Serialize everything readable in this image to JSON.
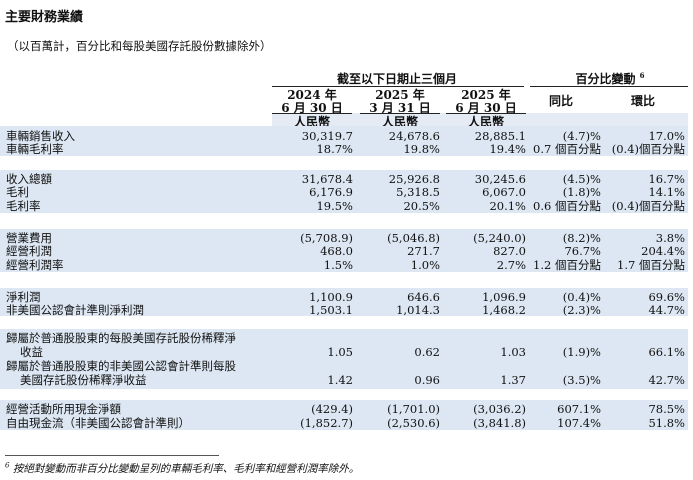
{
  "title": "主要財務業績",
  "subtitle": "（以百萬計，百分比和每股美國存託股份數據除外）",
  "header": {
    "period_group": "截至以下日期止三個月",
    "change_group": "百分比變動",
    "change_note": "6",
    "cols": [
      {
        "line1": "2024 年",
        "line2": "6 月 30 日",
        "currency": "人民幣"
      },
      {
        "line1": "2025 年",
        "line2": "3 月 31 日",
        "currency": "人民幣"
      },
      {
        "line1": "2025 年",
        "line2": "6 月 30 日",
        "currency": "人民幣"
      }
    ],
    "yoy": "同比",
    "qoq": "環比"
  },
  "rows": [
    {
      "label": "車輛銷售收入",
      "v1": "30,319.7",
      "v2": "24,678.6",
      "v3": "28,885.1",
      "yoy": "(4.7)%",
      "qoq": "17.0%"
    },
    {
      "label": "車輛毛利率",
      "v1": "18.7%",
      "v2": "19.8%",
      "v3": "19.4%",
      "yoy": "0.7 個百分點",
      "qoq": "(0.4)個百分點"
    },
    {
      "label": "收入總額",
      "v1": "31,678.4",
      "v2": "25,926.8",
      "v3": "30,245.6",
      "yoy": "(4.5)%",
      "qoq": "16.7%"
    },
    {
      "label": "毛利",
      "v1": "6,176.9",
      "v2": "5,318.5",
      "v3": "6,067.0",
      "yoy": "(1.8)%",
      "qoq": "14.1%"
    },
    {
      "label": "毛利率",
      "v1": "19.5%",
      "v2": "20.5%",
      "v3": "20.1%",
      "yoy": "0.6 個百分點",
      "qoq": "(0.4)個百分點"
    },
    {
      "label": "營業費用",
      "v1": "(5,708.9)",
      "v2": "(5,046.8)",
      "v3": "(5,240.0)",
      "yoy": "(8.2)%",
      "qoq": "3.8%"
    },
    {
      "label": "經營利潤",
      "v1": "468.0",
      "v2": "271.7",
      "v3": "827.0",
      "yoy": "76.7%",
      "qoq": "204.4%"
    },
    {
      "label": "經營利潤率",
      "v1": "1.5%",
      "v2": "1.0%",
      "v3": "2.7%",
      "yoy": "1.2 個百分點",
      "qoq": "1.7 個百分點"
    },
    {
      "label": "淨利潤",
      "v1": "1,100.9",
      "v2": "646.6",
      "v3": "1,096.9",
      "yoy": "(0.4)%",
      "qoq": "69.6%"
    },
    {
      "label": "非美國公認會計準則淨利潤",
      "v1": "1,503.1",
      "v2": "1,014.3",
      "v3": "1,468.2",
      "yoy": "(2.3)%",
      "qoq": "44.7%"
    },
    {
      "label": "歸屬於普通股股東的每股美國存託股份稀釋淨",
      "label2": "收益",
      "v1": "1.05",
      "v2": "0.62",
      "v3": "1.03",
      "yoy": "(1.9)%",
      "qoq": "66.1%"
    },
    {
      "label": "歸屬於普通股股東的非美國公認會計準則每股",
      "label2": "美國存託股份稀釋淨收益",
      "v1": "1.42",
      "v2": "0.96",
      "v3": "1.37",
      "yoy": "(3.5)%",
      "qoq": "42.7%"
    },
    {
      "label": "經營活動所用現金淨額",
      "v1": "(429.4)",
      "v2": "(1,701.0)",
      "v3": "(3,036.2)",
      "yoy": "607.1%",
      "qoq": "78.5%"
    },
    {
      "label": "自由現金流（非美國公認會計準則）",
      "v1": "(1,852.7)",
      "v2": "(2,530.6)",
      "v3": "(3,841.8)",
      "yoy": "107.4%",
      "qoq": "51.8%"
    }
  ],
  "footnote": {
    "marker": "6",
    "text": "按絕對變動而非百分比變動呈列的車輛毛利率、毛利率和經營利潤率除外。"
  }
}
